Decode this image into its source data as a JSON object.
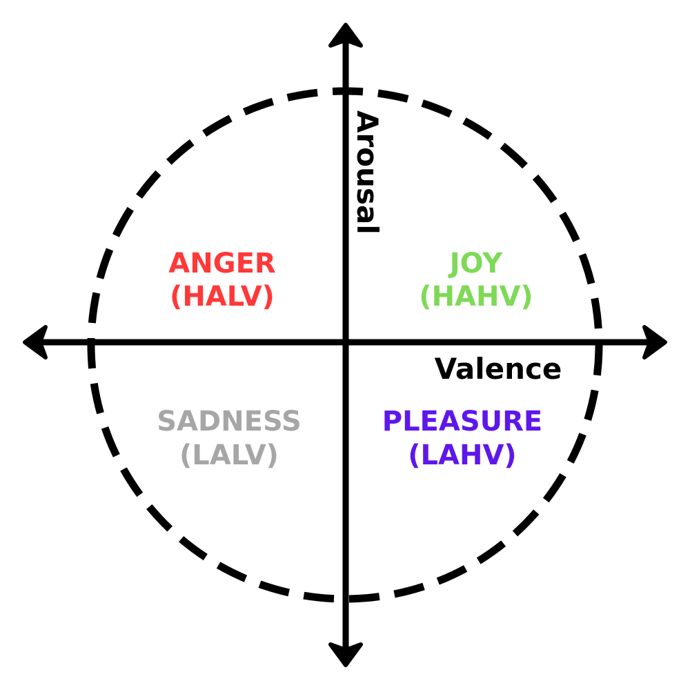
{
  "axes": {
    "vertical_label": "Arousal",
    "horizontal_label": "Valence"
  },
  "quadrants": {
    "top_left": {
      "name": "ANGER",
      "code": "(HALV)",
      "color": "#ff3838"
    },
    "top_right": {
      "name": "JOY",
      "code": "(HAHV)",
      "color": "#7ed957"
    },
    "bottom_left": {
      "name": "SADNESS",
      "code": "(LALV)",
      "color": "#a6a6a6"
    },
    "bottom_right": {
      "name": "PLEASURE",
      "code": "(LAHV)",
      "color": "#5e17eb"
    }
  },
  "style": {
    "line_color": "#000000",
    "circle": "dashed"
  }
}
